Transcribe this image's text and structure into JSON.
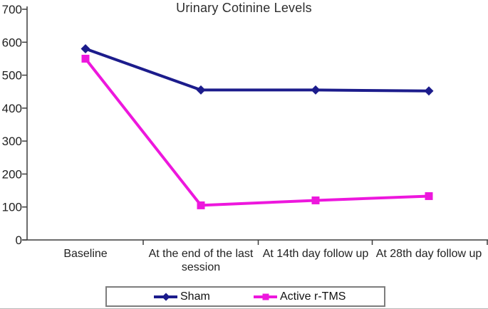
{
  "title": "Urinary Cotinine Levels",
  "chart_data": {
    "type": "line",
    "title": "Urinary Cotinine Levels",
    "categories": [
      "Baseline",
      "At the end of the last session",
      "At 14th day follow up",
      "At 28th day follow up"
    ],
    "series": [
      {
        "name": "Sham",
        "color": "#1c1c8c",
        "marker": "diamond",
        "values": [
          580,
          455,
          455,
          452
        ]
      },
      {
        "name": "Active r-TMS",
        "color": "#ed17dd",
        "marker": "square",
        "values": [
          550,
          105,
          120,
          133
        ]
      }
    ],
    "ylim": [
      0,
      700
    ],
    "y_ticks": [
      0,
      100,
      200,
      300,
      400,
      500,
      600,
      700
    ],
    "xlabel": "",
    "ylabel": "",
    "grid": false,
    "legend_position": "bottom",
    "axis_color": "#3c3c3c",
    "text_color": "#1f1f1f"
  }
}
